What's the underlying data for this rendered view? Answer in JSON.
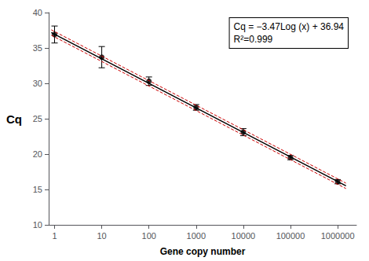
{
  "chart_data": {
    "type": "scatter",
    "x_label": "Gene copy number",
    "y_label": "Cq",
    "annotations": [
      "Cq = −3.47Log (x) + 36.94",
      "R²=0.999"
    ],
    "log": "x",
    "grid": false,
    "xlim": [
      0.75,
      2500000
    ],
    "xticks": [
      1,
      10,
      100,
      1000,
      10000,
      100000,
      1000000
    ],
    "ylim": [
      10,
      40
    ],
    "yticks": [
      10,
      15,
      20,
      25,
      30,
      35,
      40
    ],
    "series": [
      {
        "type": "line",
        "x": [
          0.85,
          1500000
        ],
        "values": [
          37.5649,
          15.889
        ],
        "color": "#cc0000",
        "line_style": "dashed"
      },
      {
        "type": "line",
        "x": [
          0.85,
          1500000
        ],
        "values": [
          36.8049,
          15.129
        ],
        "color": "#cc0000",
        "line_style": "dashed"
      },
      {
        "type": "line",
        "x": [
          0.85,
          1500000
        ],
        "values": [
          37.1849,
          15.509
        ],
        "color": "#000000",
        "line_style": "solid"
      },
      {
        "type": "scatter",
        "x": [
          1,
          10,
          100,
          1000,
          10000,
          100000,
          1000000
        ],
        "values": [
          36.9,
          33.7,
          30.3,
          26.6,
          23.1,
          19.5,
          16.1
        ],
        "errors": [
          1.2,
          1.5,
          0.6,
          0.4,
          0.5,
          0.3,
          0.3
        ],
        "color": "#000000",
        "marker": "circle"
      }
    ]
  }
}
